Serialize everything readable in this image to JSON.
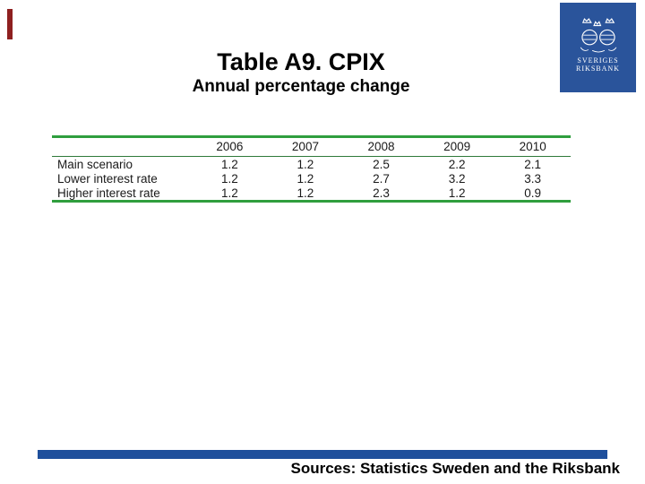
{
  "slide": {
    "title": "Table A9. CPIX",
    "subtitle": "Annual percentage change",
    "source_note": "Sources: Statistics Sweden and the Riksbank"
  },
  "logo": {
    "line1": "SVERIGES",
    "line2": "RIKSBANK",
    "background_color": "#2A549B"
  },
  "colors": {
    "table_rule_green": "#2F9E3E",
    "footer_bar_blue": "#1E4F9C",
    "accent_bar_red": "#8E2020"
  },
  "chart_data": {
    "type": "table",
    "title": "Table A9. CPIX",
    "subtitle": "Annual percentage change",
    "columns": [
      "",
      "2006",
      "2007",
      "2008",
      "2009",
      "2010"
    ],
    "rows": [
      {
        "label": "Main scenario",
        "values": [
          "1.2",
          "1.2",
          "2.5",
          "2.2",
          "2.1"
        ]
      },
      {
        "label": "Lower interest rate",
        "values": [
          "1.2",
          "1.2",
          "2.7",
          "3.2",
          "3.3"
        ]
      },
      {
        "label": "Higher interest rate",
        "values": [
          "1.2",
          "1.2",
          "2.3",
          "1.2",
          "0.9"
        ]
      }
    ]
  }
}
